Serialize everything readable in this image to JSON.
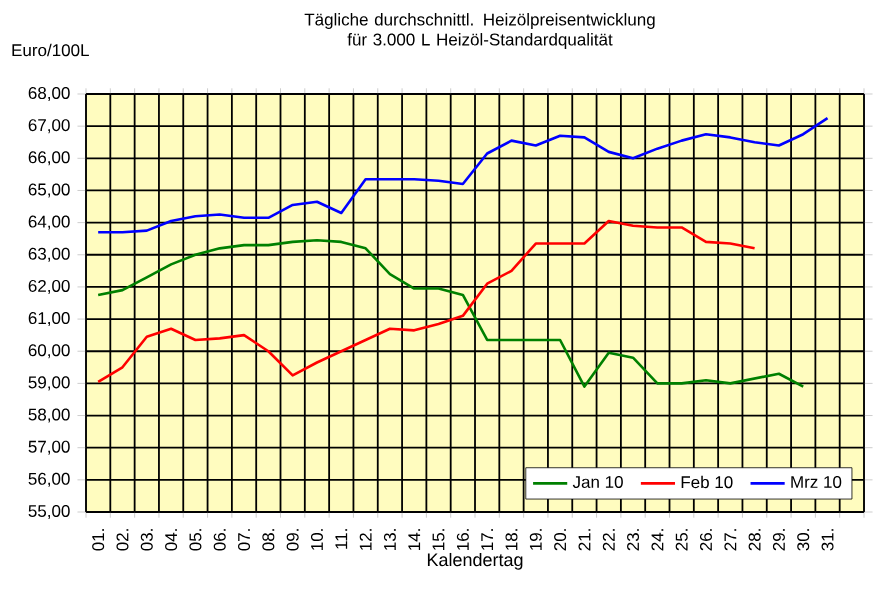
{
  "chart_data": {
    "type": "line",
    "title": "Tägliche durchschnittl. Heizölpreisentwicklung für 3.000 L Heizöl-Standardqualität",
    "ylabel": "Euro/100L",
    "xlabel": "Kalendertag",
    "categories": [
      "01.",
      "02.",
      "03.",
      "04.",
      "05.",
      "06.",
      "07.",
      "08.",
      "09.",
      "10.",
      "11.",
      "12.",
      "13.",
      "14.",
      "15.",
      "16.",
      "17.",
      "18.",
      "19.",
      "20.",
      "21.",
      "22.",
      "23.",
      "24.",
      "25.",
      "26.",
      "27.",
      "28.",
      "29.",
      "30.",
      "31.",
      null
    ],
    "ylim": [
      55,
      68
    ],
    "yticks": [
      {
        "value": 55,
        "label": "55,00"
      },
      {
        "value": 56,
        "label": "56,00"
      },
      {
        "value": 57,
        "label": "57,00"
      },
      {
        "value": 58,
        "label": "58,00"
      },
      {
        "value": 59,
        "label": "59,00"
      },
      {
        "value": 60,
        "label": "60,00"
      },
      {
        "value": 61,
        "label": "61,00"
      },
      {
        "value": 62,
        "label": "62,00"
      },
      {
        "value": 63,
        "label": "63,00"
      },
      {
        "value": 64,
        "label": "64,00"
      },
      {
        "value": 65,
        "label": "65,00"
      },
      {
        "value": 66,
        "label": "66,00"
      },
      {
        "value": 67,
        "label": "67,00"
      },
      {
        "value": 68,
        "label": "68,00"
      }
    ],
    "grid": true,
    "legend": "bottom right",
    "marker": "none",
    "line_style": "solid",
    "series": [
      {
        "name": "Jan 10",
        "color": "#008000",
        "values": [
          61.75,
          61.9,
          62.3,
          62.7,
          63.0,
          63.2,
          63.3,
          63.3,
          63.4,
          63.45,
          63.4,
          63.2,
          62.4,
          61.95,
          61.95,
          61.75,
          60.35,
          60.35,
          60.35,
          60.35,
          58.9,
          59.95,
          59.8,
          59.0,
          59.0,
          59.1,
          59.0,
          59.15,
          59.3,
          58.9,
          null,
          null
        ]
      },
      {
        "name": "Feb 10",
        "color": "#FF0000",
        "values": [
          59.05,
          59.5,
          60.45,
          60.7,
          60.35,
          60.4,
          60.5,
          60.0,
          59.25,
          59.65,
          60.0,
          60.35,
          60.7,
          60.65,
          60.85,
          61.1,
          62.1,
          62.5,
          63.35,
          63.35,
          63.35,
          64.05,
          63.9,
          63.85,
          63.85,
          63.4,
          63.35,
          63.2,
          null,
          null,
          null,
          null
        ]
      },
      {
        "name": "Mrz 10",
        "color": "#0000FF",
        "values": [
          63.7,
          63.7,
          63.75,
          64.05,
          64.2,
          64.25,
          64.15,
          64.15,
          64.55,
          64.65,
          64.3,
          65.35,
          65.35,
          65.35,
          65.3,
          65.2,
          66.15,
          66.55,
          66.4,
          66.7,
          66.65,
          66.2,
          66.0,
          66.3,
          66.55,
          66.75,
          66.65,
          66.5,
          66.4,
          66.75,
          67.25,
          null
        ]
      }
    ]
  }
}
